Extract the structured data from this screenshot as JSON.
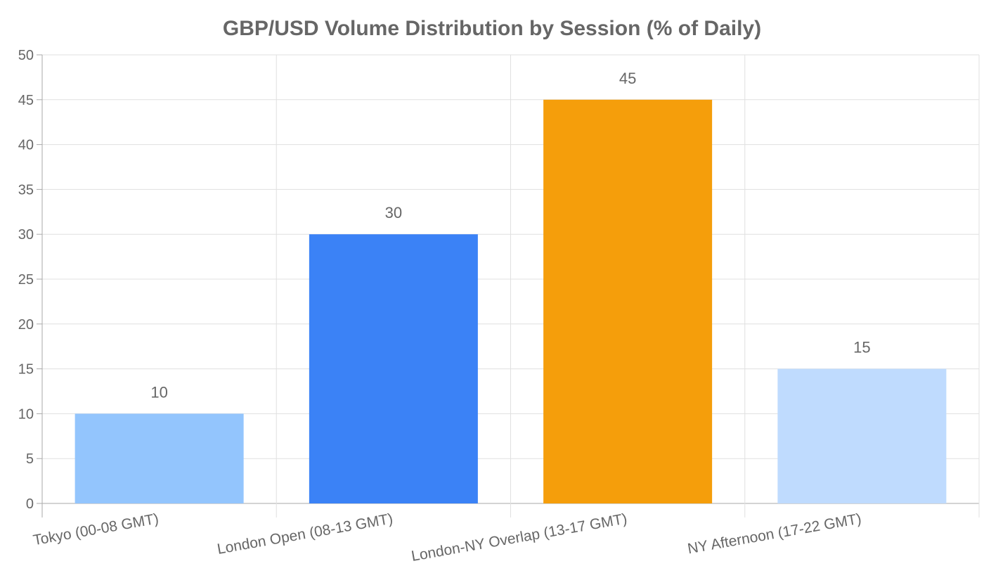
{
  "chart_data": {
    "type": "bar",
    "title": "GBP/USD Volume Distribution by Session (% of Daily)",
    "xlabel": "",
    "ylabel": "",
    "categories": [
      "Tokyo (00-08 GMT)",
      "London Open (08-13 GMT)",
      "London-NY Overlap (13-17 GMT)",
      "NY Afternoon (17-22 GMT)"
    ],
    "values": [
      10,
      30,
      45,
      15
    ],
    "colors": [
      "#93c5fd",
      "#3b82f6",
      "#f59e0b",
      "#bfdbfe"
    ],
    "ylim": [
      0,
      50
    ],
    "yticks": [
      0,
      5,
      10,
      15,
      20,
      25,
      30,
      35,
      40,
      45,
      50
    ],
    "grid": true,
    "data_labels": true,
    "legend": "none"
  }
}
